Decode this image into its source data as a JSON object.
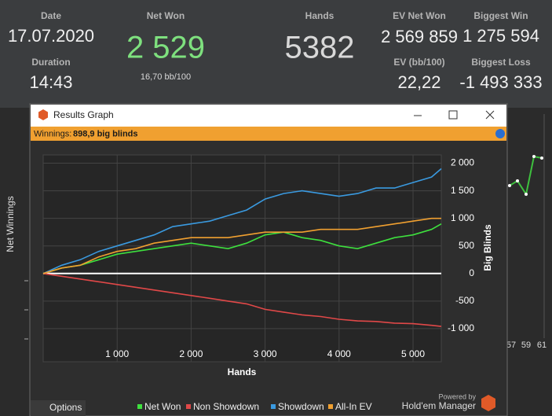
{
  "header": {
    "date": {
      "label": "Date",
      "value": "17.07.2020"
    },
    "duration": {
      "label": "Duration",
      "value": "14:43"
    },
    "net_won": {
      "label": "Net Won",
      "value": "2 529",
      "sub": "16,70 bb/100"
    },
    "hands": {
      "label": "Hands",
      "value": "5382"
    },
    "ev_net_won": {
      "label": "EV Net Won",
      "value": "2 569 859"
    },
    "ev_bb100": {
      "label": "EV (bb/100)",
      "value": "22,22"
    },
    "biggest_win": {
      "label": "Biggest Win",
      "value": "1 275 594"
    },
    "biggest_loss": {
      "label": "Biggest Loss",
      "value": "-1 493 333"
    }
  },
  "background": {
    "axis_label": "Net Winnings",
    "x_labels": [
      "57",
      "59",
      "61"
    ]
  },
  "window": {
    "title": "Results Graph",
    "summary_label": "Winnings:",
    "summary_value": "898,9 big blinds",
    "options_button": "Options",
    "powered_by": "Powered by",
    "brand": "Hold'em Manager"
  },
  "chart_data": {
    "type": "line",
    "xlabel": "Hands",
    "ylabel": "Big Blinds",
    "x": [
      0,
      250,
      500,
      750,
      1000,
      1250,
      1500,
      1750,
      2000,
      2250,
      2500,
      2750,
      3000,
      3250,
      3500,
      3750,
      4000,
      4250,
      4500,
      4750,
      5000,
      5250,
      5382
    ],
    "series": [
      {
        "name": "Net Won",
        "color": "#3ee03e",
        "values": [
          0,
          100,
          150,
          250,
          350,
          400,
          450,
          500,
          550,
          500,
          450,
          550,
          700,
          750,
          650,
          600,
          500,
          450,
          550,
          650,
          700,
          800,
          900
        ]
      },
      {
        "name": "Non Showdown",
        "color": "#e04848",
        "values": [
          0,
          -50,
          -100,
          -150,
          -200,
          -250,
          -300,
          -350,
          -400,
          -450,
          -500,
          -550,
          -650,
          -700,
          -750,
          -780,
          -830,
          -860,
          -870,
          -900,
          -910,
          -940,
          -960
        ]
      },
      {
        "name": "Showdown",
        "color": "#3a9ae0",
        "values": [
          0,
          150,
          250,
          400,
          500,
          600,
          700,
          850,
          900,
          950,
          1050,
          1150,
          1350,
          1450,
          1500,
          1450,
          1400,
          1450,
          1550,
          1550,
          1650,
          1750,
          1900
        ]
      },
      {
        "name": "All-In EV",
        "color": "#f0a030",
        "values": [
          0,
          100,
          150,
          300,
          400,
          450,
          550,
          600,
          650,
          650,
          650,
          700,
          750,
          750,
          750,
          800,
          800,
          800,
          850,
          900,
          950,
          1000,
          1000
        ]
      }
    ],
    "xlim": [
      0,
      5382
    ],
    "xticks": [
      {
        "value": 1000,
        "label": "1 000"
      },
      {
        "value": 2000,
        "label": "2 000"
      },
      {
        "value": 3000,
        "label": "3 000"
      },
      {
        "value": 4000,
        "label": "4 000"
      },
      {
        "value": 5000,
        "label": "5 000"
      }
    ],
    "ylim": [
      -1600,
      2150
    ],
    "yticks": [
      {
        "value": 2000,
        "label": "2 000"
      },
      {
        "value": 1500,
        "label": "1 500"
      },
      {
        "value": 1000,
        "label": "1 000"
      },
      500,
      0,
      -500,
      {
        "value": -1000,
        "label": "-1 000"
      }
    ],
    "grid": true
  }
}
